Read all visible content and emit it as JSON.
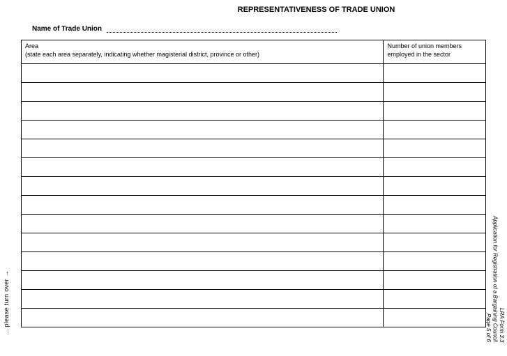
{
  "title": "REPRESENTATIVENESS OF TRADE UNION",
  "name_label": "Name of Trade Union",
  "table": {
    "columns": [
      {
        "header": "Area",
        "subheader": "(state each area separately, indicating whether magisterial district, province or other)"
      },
      {
        "header": "Number of union members employed in the sector"
      }
    ],
    "row_count": 14,
    "rows": [
      [
        "",
        ""
      ],
      [
        "",
        ""
      ],
      [
        "",
        ""
      ],
      [
        "",
        ""
      ],
      [
        "",
        ""
      ],
      [
        "",
        ""
      ],
      [
        "",
        ""
      ],
      [
        "",
        ""
      ],
      [
        "",
        ""
      ],
      [
        "",
        ""
      ],
      [
        "",
        ""
      ],
      [
        "",
        ""
      ],
      [
        "",
        ""
      ],
      [
        "",
        ""
      ]
    ]
  },
  "side_left": "... please turn over →",
  "side_right_line1": "LRA Form 3.3",
  "side_right_line2": "Application for Registration of a Bargaining Council",
  "side_right_line3": "Page 5 of 6"
}
